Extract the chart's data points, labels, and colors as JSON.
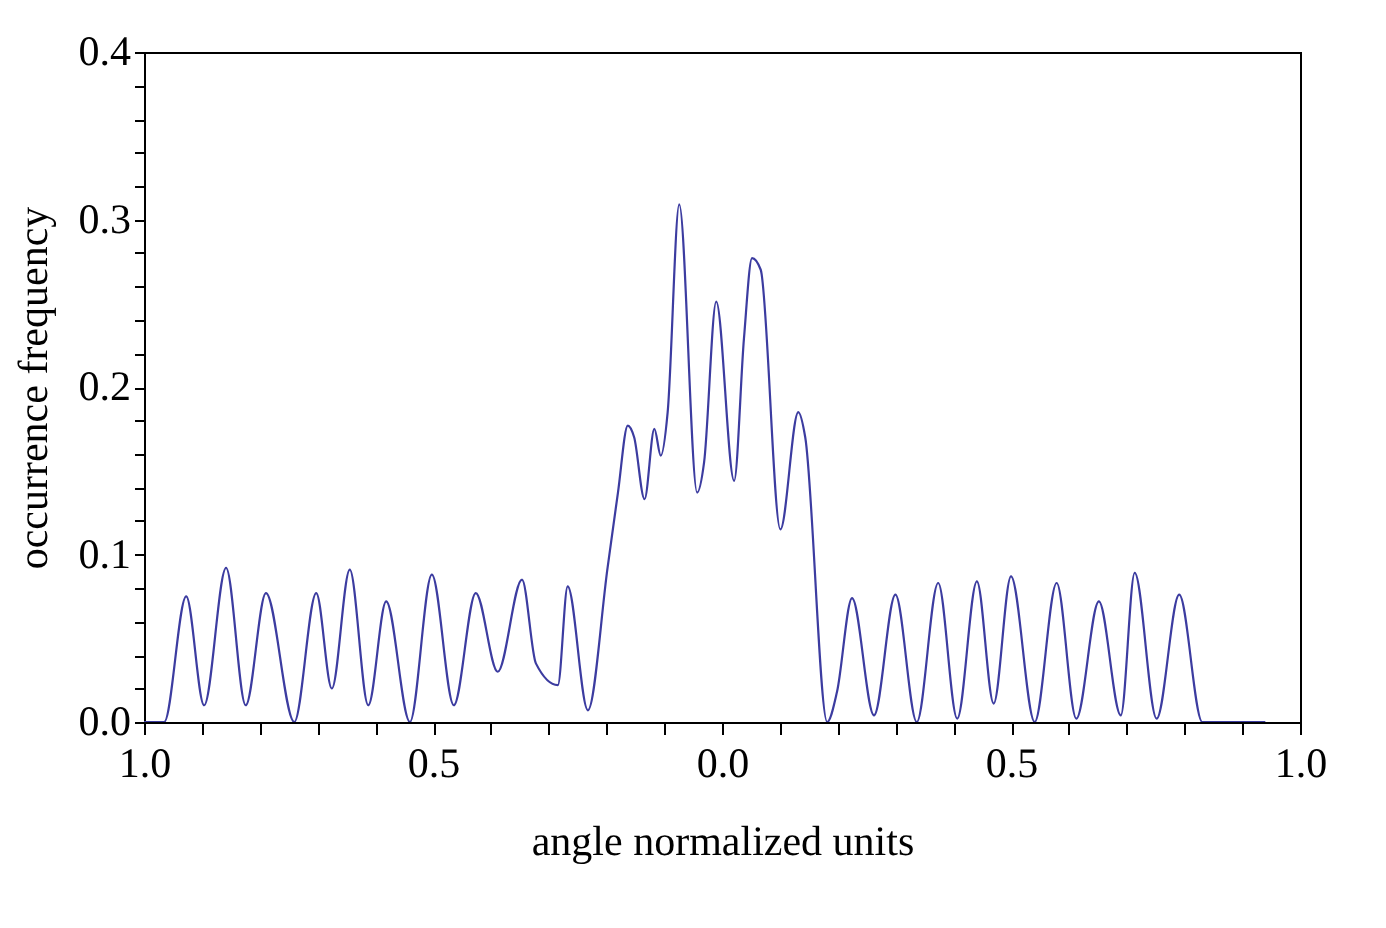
{
  "chart_data": {
    "type": "line",
    "xlabel": "angle normalized units",
    "ylabel": "occurrence frequency",
    "xlim": [
      -1.0,
      1.0
    ],
    "ylim": [
      0.0,
      0.4
    ],
    "xticks": [
      {
        "value": -1.0,
        "label": "1.0"
      },
      {
        "value": -0.9,
        "label": null
      },
      {
        "value": -0.8,
        "label": null
      },
      {
        "value": -0.7,
        "label": null
      },
      {
        "value": -0.6,
        "label": null
      },
      {
        "value": -0.5,
        "label": "0.5"
      },
      {
        "value": -0.4,
        "label": null
      },
      {
        "value": -0.3,
        "label": null
      },
      {
        "value": -0.2,
        "label": null
      },
      {
        "value": -0.1,
        "label": null
      },
      {
        "value": 0.0,
        "label": "0.0"
      },
      {
        "value": 0.1,
        "label": null
      },
      {
        "value": 0.2,
        "label": null
      },
      {
        "value": 0.3,
        "label": null
      },
      {
        "value": 0.4,
        "label": null
      },
      {
        "value": 0.5,
        "label": "0.5"
      },
      {
        "value": 0.6,
        "label": null
      },
      {
        "value": 0.7,
        "label": null
      },
      {
        "value": 0.8,
        "label": null
      },
      {
        "value": 0.9,
        "label": null
      },
      {
        "value": 1.0,
        "label": "1.0"
      }
    ],
    "yticks": [
      {
        "value": 0.0,
        "label": "0.0"
      },
      {
        "value": 0.02,
        "label": null
      },
      {
        "value": 0.04,
        "label": null
      },
      {
        "value": 0.06,
        "label": null
      },
      {
        "value": 0.08,
        "label": null
      },
      0.1,
      {
        "value": 0.12,
        "label": null
      },
      {
        "value": 0.14,
        "label": null
      },
      {
        "value": 0.16,
        "label": null
      },
      {
        "value": 0.18,
        "label": null
      },
      0.2,
      {
        "value": 0.22,
        "label": null
      },
      {
        "value": 0.24,
        "label": null
      },
      {
        "value": 0.26,
        "label": null
      },
      {
        "value": 0.28,
        "label": null
      },
      0.3,
      {
        "value": 0.32,
        "label": null
      },
      {
        "value": 0.34,
        "label": null
      },
      {
        "value": 0.36,
        "label": null
      },
      {
        "value": 0.38,
        "label": null
      },
      0.4
    ],
    "grid": false,
    "marker": "none",
    "line_style": "solid",
    "series": [
      {
        "color": "#3c3ca0",
        "x": [
          -1.0,
          -0.965,
          -0.927,
          -0.896,
          -0.858,
          -0.824,
          -0.789,
          -0.74,
          -0.702,
          -0.675,
          -0.644,
          -0.612,
          -0.581,
          -0.54,
          -0.502,
          -0.464,
          -0.426,
          -0.388,
          -0.346,
          -0.322,
          -0.284,
          -0.267,
          -0.232,
          -0.198,
          -0.18,
          -0.163,
          -0.152,
          -0.134,
          -0.117,
          -0.106,
          -0.094,
          -0.074,
          -0.043,
          -0.031,
          -0.01,
          0.021,
          0.038,
          0.052,
          0.067,
          0.101,
          0.132,
          0.144,
          0.182,
          0.199,
          0.225,
          0.263,
          0.3,
          0.337,
          0.374,
          0.407,
          0.441,
          0.47,
          0.5,
          0.541,
          0.579,
          0.613,
          0.652,
          0.69,
          0.714,
          0.752,
          0.791,
          0.831,
          0.9,
          0.94
        ],
        "values": [
          0.0,
          0.0,
          0.075,
          0.01,
          0.092,
          0.01,
          0.077,
          0.0,
          0.077,
          0.02,
          0.091,
          0.01,
          0.072,
          0.0,
          0.088,
          0.01,
          0.077,
          0.03,
          0.085,
          0.035,
          0.022,
          0.081,
          0.007,
          0.092,
          0.137,
          0.177,
          0.17,
          0.133,
          0.175,
          0.159,
          0.185,
          0.309,
          0.137,
          0.155,
          0.251,
          0.144,
          0.229,
          0.277,
          0.27,
          0.115,
          0.185,
          0.17,
          0.0,
          0.018,
          0.074,
          0.004,
          0.076,
          0.0,
          0.083,
          0.002,
          0.084,
          0.011,
          0.087,
          0.0,
          0.083,
          0.002,
          0.072,
          0.004,
          0.089,
          0.002,
          0.076,
          0.0,
          0.0,
          0.0
        ]
      }
    ]
  }
}
